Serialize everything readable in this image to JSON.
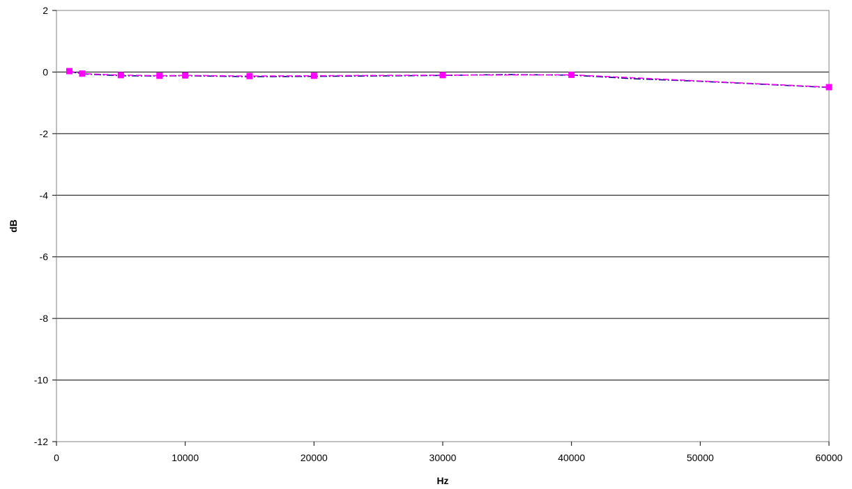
{
  "chart_data": {
    "type": "line",
    "title": "",
    "xlabel": "Hz",
    "ylabel": "dB",
    "xlim": [
      0,
      60000
    ],
    "ylim": [
      -12,
      2
    ],
    "x_ticks": [
      0,
      10000,
      20000,
      30000,
      40000,
      50000,
      60000
    ],
    "y_ticks": [
      2,
      0,
      -2,
      -4,
      -6,
      -8,
      -10,
      -12
    ],
    "grid": "horizontal",
    "legend": "none",
    "series": [
      {
        "color": "#ff00ff",
        "style": "dashed-markers",
        "x": [
          1000,
          2000,
          5000,
          8000,
          10000,
          15000,
          20000,
          30000,
          40000,
          60000
        ],
        "y": [
          0.03,
          -0.05,
          -0.1,
          -0.12,
          -0.11,
          -0.13,
          -0.12,
          -0.1,
          -0.09,
          -0.49
        ]
      },
      {
        "color": "#000080",
        "style": "dash-dot",
        "x": [
          1000,
          2000,
          5000,
          8000,
          10000,
          15000,
          20000,
          30000,
          35000,
          40000,
          45000,
          50000,
          55000,
          60000
        ],
        "y": [
          0.02,
          -0.06,
          -0.12,
          -0.13,
          -0.12,
          -0.15,
          -0.14,
          -0.11,
          -0.08,
          -0.1,
          -0.22,
          -0.3,
          -0.4,
          -0.5
        ]
      }
    ]
  }
}
